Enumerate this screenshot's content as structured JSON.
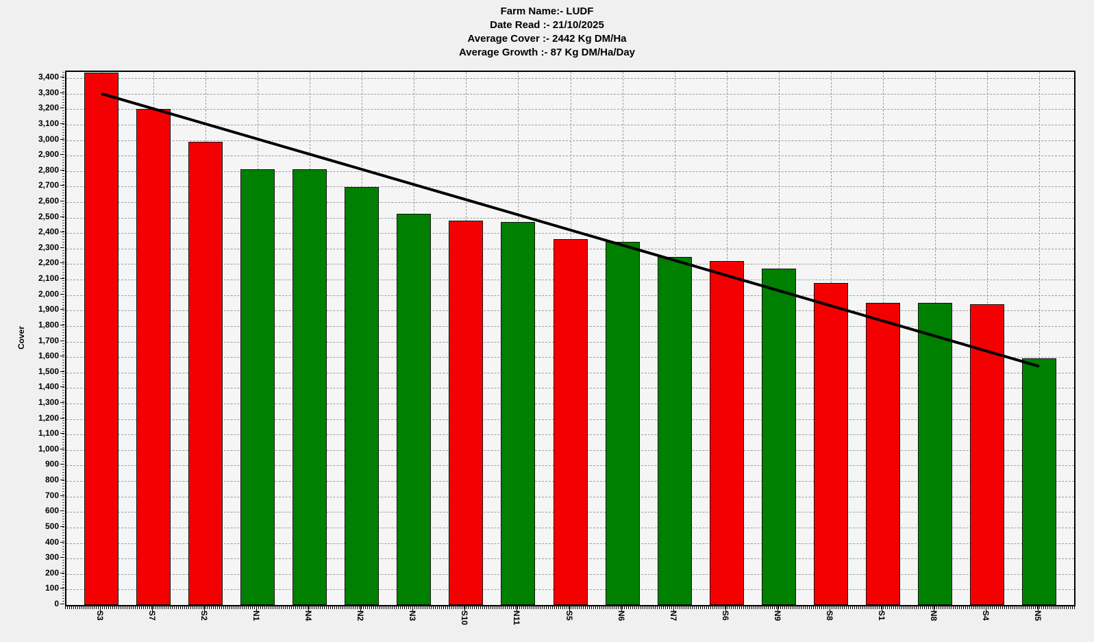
{
  "header": {
    "lines": [
      "Farm Name:- LUDF",
      "Date Read :-  21/10/2025",
      "Average Cover :-  2442 Kg DM/Ha",
      "Average Growth :-  87 Kg DM/Ha/Day"
    ]
  },
  "chart_data": {
    "type": "bar",
    "title": "Farm Name:- LUDF",
    "subtitle_lines": [
      "Date Read :-  21/10/2025",
      "Average Cover :-  2442 Kg DM/Ha",
      "Average Growth :-  87 Kg DM/Ha/Day"
    ],
    "xlabel": "",
    "ylabel": "Cover",
    "ylim": [
      0,
      3440
    ],
    "ytick_step": 100,
    "grid": true,
    "legend_position": "none",
    "categories": [
      "S3",
      "S7",
      "S2",
      "N1",
      "N4",
      "N2",
      "N3",
      "S10",
      "N11",
      "S5",
      "N6",
      "N7",
      "S6",
      "N9",
      "S8",
      "S1",
      "N8",
      "S4",
      "N5"
    ],
    "values": [
      3435,
      3200,
      2990,
      2810,
      2810,
      2695,
      2525,
      2480,
      2470,
      2360,
      2345,
      2245,
      2220,
      2170,
      2080,
      1950,
      1950,
      1940,
      1590
    ],
    "bar_colors": [
      "red",
      "red",
      "red",
      "green",
      "green",
      "green",
      "green",
      "red",
      "green",
      "red",
      "green",
      "green",
      "red",
      "green",
      "red",
      "red",
      "green",
      "red",
      "green"
    ],
    "colors": {
      "red": "#f50000",
      "green": "#008000",
      "trend_line": "#000000",
      "grid": "#9b9b9b",
      "plot_background": "#f5f5f5",
      "page_background": "#f0f0f0"
    },
    "trend_line": {
      "from": {
        "index": 0,
        "value": 3300
      },
      "to": {
        "index": 18,
        "value": 1540
      }
    }
  }
}
